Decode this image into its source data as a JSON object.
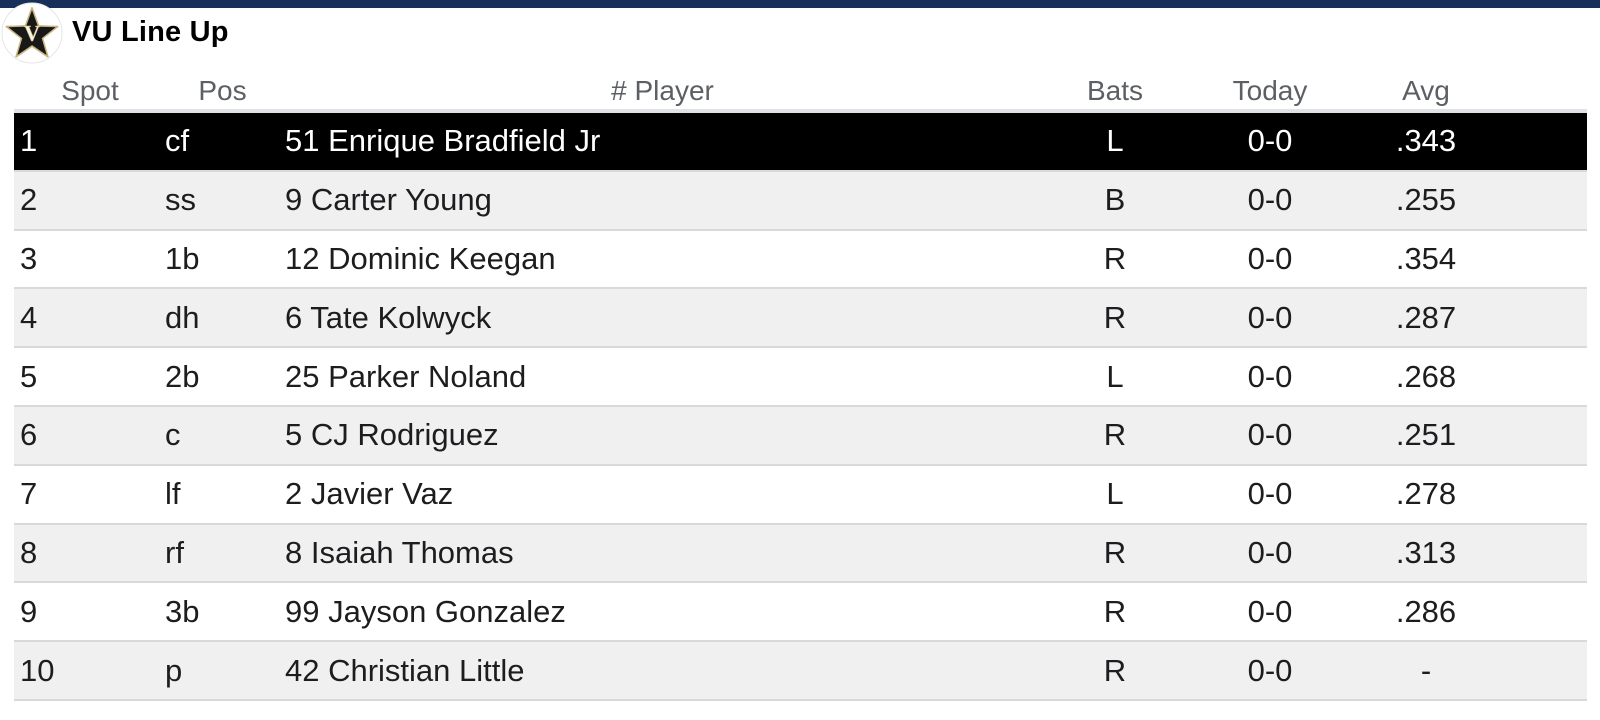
{
  "window": {
    "top_bar_color": "#16305a"
  },
  "header": {
    "title": "VU Line Up",
    "logo": {
      "name": "vanderbilt-star-logo",
      "letter": "V",
      "star_color": "#181818",
      "star_outline_color": "#c8b57e",
      "circle_color": "#ffffff"
    }
  },
  "table": {
    "columns": [
      {
        "key": "spot",
        "label": "Spot"
      },
      {
        "key": "pos",
        "label": "Pos"
      },
      {
        "key": "player",
        "label": "# Player"
      },
      {
        "key": "bats",
        "label": "Bats"
      },
      {
        "key": "today",
        "label": "Today"
      },
      {
        "key": "avg",
        "label": "Avg"
      }
    ],
    "rows": [
      {
        "spot": "1",
        "pos": "cf",
        "player": "51 Enrique Bradfield Jr",
        "bats": "L",
        "today": "0-0",
        "avg": ".343",
        "selected": true
      },
      {
        "spot": "2",
        "pos": "ss",
        "player": "9 Carter Young",
        "bats": "B",
        "today": "0-0",
        "avg": ".255"
      },
      {
        "spot": "3",
        "pos": "1b",
        "player": "12 Dominic Keegan",
        "bats": "R",
        "today": "0-0",
        "avg": ".354"
      },
      {
        "spot": "4",
        "pos": "dh",
        "player": "6 Tate Kolwyck",
        "bats": "R",
        "today": "0-0",
        "avg": ".287"
      },
      {
        "spot": "5",
        "pos": "2b",
        "player": "25 Parker Noland",
        "bats": "L",
        "today": "0-0",
        "avg": ".268"
      },
      {
        "spot": "6",
        "pos": "c",
        "player": "5 CJ Rodriguez",
        "bats": "R",
        "today": "0-0",
        "avg": ".251"
      },
      {
        "spot": "7",
        "pos": "lf",
        "player": "2 Javier Vaz",
        "bats": "L",
        "today": "0-0",
        "avg": ".278"
      },
      {
        "spot": "8",
        "pos": "rf",
        "player": "8 Isaiah Thomas",
        "bats": "R",
        "today": "0-0",
        "avg": ".313"
      },
      {
        "spot": "9",
        "pos": "3b",
        "player": "99 Jayson Gonzalez",
        "bats": "R",
        "today": "0-0",
        "avg": ".286"
      },
      {
        "spot": "10",
        "pos": "p",
        "player": "42 Christian Little",
        "bats": "R",
        "today": "0-0",
        "avg": "-"
      }
    ],
    "colors": {
      "selected_bg": "#000000",
      "selected_text": "#ffffff",
      "stripe_bg": "#f0f0f1",
      "row_border": "#d9d9db",
      "header_text": "#5c5f63",
      "body_text": "#1d1d1f"
    }
  }
}
